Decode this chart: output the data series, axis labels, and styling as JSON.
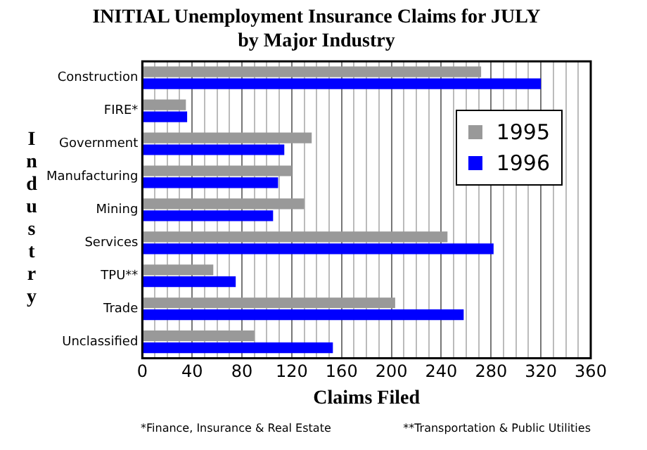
{
  "chart_data": {
    "type": "bar",
    "orientation": "horizontal",
    "title": "INITIAL Unemployment Insurance Claims for JULY",
    "subtitle": "by Major Industry",
    "xlabel": "Claims Filed",
    "ylabel": "Industry",
    "categories": [
      "Construction",
      "FIRE*",
      "Government",
      "Manufacturing",
      "Mining",
      "Services",
      "TPU**",
      "Trade",
      "Unclassified"
    ],
    "series": [
      {
        "name": "1995",
        "color": "#999999",
        "values": [
          272,
          35,
          136,
          120,
          130,
          245,
          57,
          203,
          90
        ]
      },
      {
        "name": "1996",
        "color": "#0000ff",
        "values": [
          320,
          36,
          114,
          109,
          105,
          282,
          75,
          258,
          153
        ]
      }
    ],
    "xlim": [
      0,
      360
    ],
    "xticks": [
      0,
      {
        "value": 10,
        "label": null
      },
      {
        "value": 20,
        "label": null
      },
      {
        "value": 30,
        "label": null
      },
      40,
      {
        "value": 50,
        "label": null
      },
      {
        "value": 60,
        "label": null
      },
      {
        "value": 70,
        "label": null
      },
      80,
      {
        "value": 90,
        "label": null
      },
      {
        "value": 100,
        "label": null
      },
      {
        "value": 110,
        "label": null
      },
      120,
      {
        "value": 130,
        "label": null
      },
      {
        "value": 140,
        "label": null
      },
      {
        "value": 150,
        "label": null
      },
      160,
      {
        "value": 170,
        "label": null
      },
      {
        "value": 180,
        "label": null
      },
      {
        "value": 190,
        "label": null
      },
      200,
      {
        "value": 210,
        "label": null
      },
      {
        "value": 220,
        "label": null
      },
      {
        "value": 230,
        "label": null
      },
      240,
      {
        "value": 250,
        "label": null
      },
      {
        "value": 260,
        "label": null
      },
      {
        "value": 270,
        "label": null
      },
      280,
      {
        "value": 290,
        "label": null
      },
      {
        "value": 300,
        "label": null
      },
      {
        "value": 310,
        "label": null
      },
      320,
      {
        "value": 330,
        "label": null
      },
      {
        "value": 340,
        "label": null
      },
      {
        "value": 350,
        "label": null
      },
      360
    ],
    "grid": "x",
    "legend": "top right",
    "annotations": [
      "*Finance, Insurance & Real Estate",
      "**Transportation & Public Utilities"
    ]
  }
}
